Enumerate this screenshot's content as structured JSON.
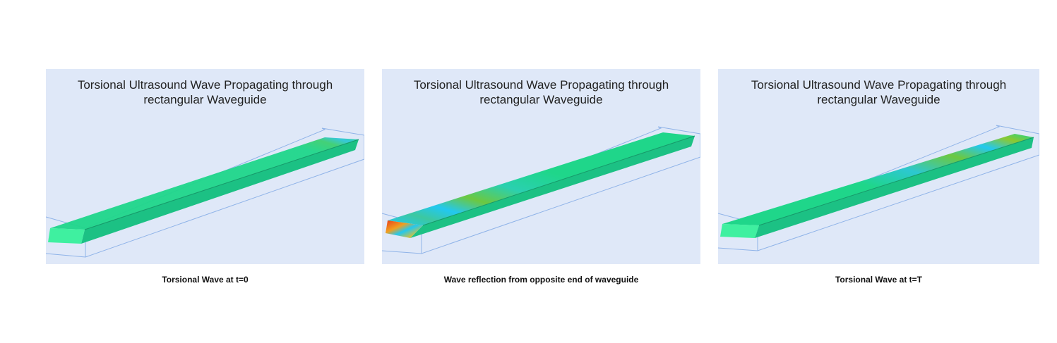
{
  "panels": [
    {
      "title_line1": "Torsional Ultrasound Wave Propagating through",
      "title_line2": "rectangular Waveguide",
      "caption": "Torsional Wave at t=0",
      "state": "initial"
    },
    {
      "title_line1": "Torsional Ultrasound Wave Propagating through",
      "title_line2": "rectangular Waveguide",
      "caption": "Wave reflection from opposite end of waveguide",
      "state": "reflection"
    },
    {
      "title_line1": "Torsional Ultrasound Wave Propagating through",
      "title_line2": "rectangular Waveguide",
      "caption": "Torsional Wave at t=T",
      "state": "final"
    }
  ],
  "colors": {
    "background": "#dfe8f8",
    "bar": "#1fd68a",
    "hot": "#e8401c",
    "cold": "#22c8f0"
  }
}
